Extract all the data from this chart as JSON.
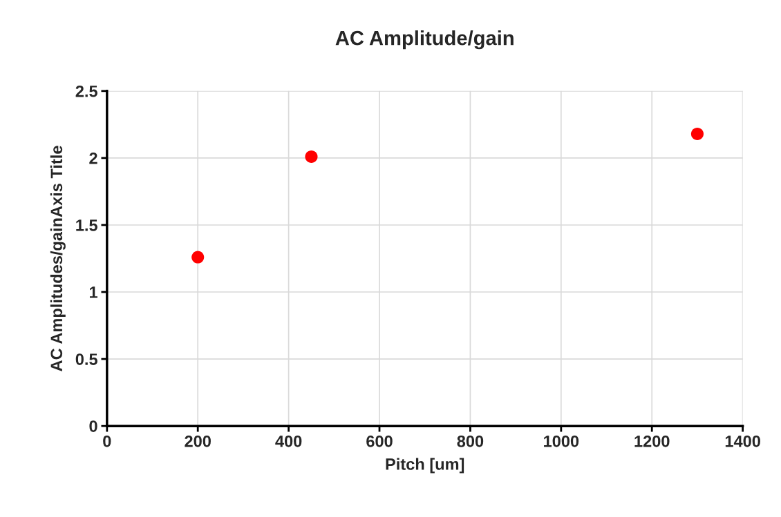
{
  "chart_data": {
    "type": "scatter",
    "title": "AC Amplitude/gain",
    "xlabel": "Pitch [um]",
    "ylabel": "AC Amplitudes/gainAxis Title",
    "x": [
      200,
      450,
      1300
    ],
    "series": [
      {
        "color": "#ff0000",
        "values": [
          1.26,
          2.01,
          2.18
        ]
      }
    ],
    "xlim": [
      0,
      1400
    ],
    "xticks": [
      0,
      200,
      400,
      600,
      800,
      1000,
      1200,
      1400
    ],
    "ylim": [
      0,
      2.5
    ],
    "yticks": [
      0,
      0.5,
      1,
      1.5,
      2,
      2.5
    ],
    "grid": true,
    "marker": "circle",
    "legend": false
  }
}
